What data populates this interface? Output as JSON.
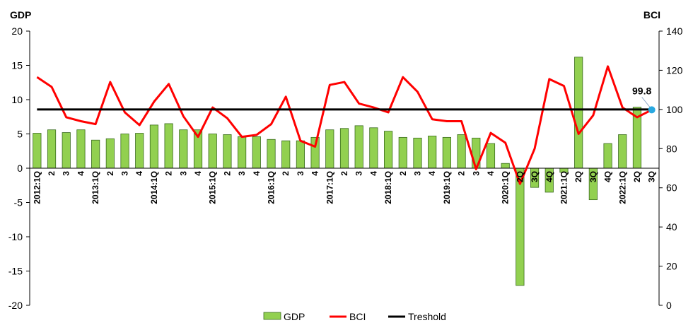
{
  "chart_data": {
    "type": "bar",
    "y_left_label": "GDP",
    "y_right_label": "BCI",
    "y_left_lim": [
      -20,
      20
    ],
    "y_left_ticks": [
      -20,
      -15,
      -10,
      -5,
      0,
      5,
      10,
      15,
      20
    ],
    "y_right_lim": [
      0,
      140
    ],
    "y_right_ticks": [
      0,
      20,
      40,
      60,
      80,
      100,
      120,
      140
    ],
    "grid": false,
    "legend_position": "bottom",
    "categories": [
      "2012:1Q",
      "2",
      "3",
      "4",
      "2013:1Q",
      "2",
      "3",
      "4",
      "2014:1Q",
      "2",
      "3",
      "4",
      "2015:1Q",
      "2",
      "3",
      "4",
      "2016:1Q",
      "2",
      "3",
      "4",
      "2017:1Q",
      "2",
      "3",
      "4",
      "2018:1Q",
      "2",
      "3",
      "4",
      "2019:1Q",
      "2",
      "3",
      "4",
      "2020:1Q",
      "2Q",
      "3Q",
      "4Q",
      "2021:1Q",
      "2Q",
      "3Q",
      "4Q",
      "2022:1Q",
      "2Q",
      "3Q"
    ],
    "series": [
      {
        "name": "GDP",
        "type": "bar",
        "axis": "left",
        "color": "#92D050",
        "border": "#3A6B1E",
        "values": [
          5.1,
          5.6,
          5.2,
          5.6,
          4.1,
          4.3,
          5.0,
          5.1,
          6.3,
          6.5,
          5.6,
          5.6,
          5.0,
          4.9,
          4.6,
          4.6,
          4.2,
          4.0,
          4.0,
          4.5,
          5.6,
          5.8,
          6.2,
          5.9,
          5.4,
          4.5,
          4.4,
          4.7,
          4.5,
          4.9,
          4.4,
          3.6,
          0.7,
          -17.1,
          -2.8,
          -3.5,
          -0.6,
          16.2,
          -4.6,
          3.6,
          4.9,
          8.9,
          null
        ]
      },
      {
        "name": "BCI",
        "type": "line",
        "axis": "right",
        "color": "#FF0000",
        "values": [
          116.5,
          111.5,
          96,
          94,
          92.5,
          114,
          98.5,
          92,
          104,
          113,
          96.5,
          86,
          101,
          95.5,
          86,
          87,
          92.5,
          106.5,
          84,
          81,
          112.5,
          114,
          103,
          101,
          98.5,
          116.5,
          109,
          95,
          94,
          94,
          69.5,
          88,
          83,
          62,
          80,
          115.5,
          112,
          87.5,
          97,
          122,
          101,
          96,
          99.8
        ]
      },
      {
        "name": "Treshold",
        "type": "line",
        "axis": "right",
        "color": "#000000",
        "values": [
          100,
          100,
          100,
          100,
          100,
          100,
          100,
          100,
          100,
          100,
          100,
          100,
          100,
          100,
          100,
          100,
          100,
          100,
          100,
          100,
          100,
          100,
          100,
          100,
          100,
          100,
          100,
          100,
          100,
          100,
          100,
          100,
          100,
          100,
          100,
          100,
          100,
          100,
          100,
          100,
          100,
          100,
          100
        ]
      }
    ],
    "annotation": {
      "text": "99.8",
      "series": "BCI",
      "index": 42,
      "marker_color": "#29A8E0"
    }
  }
}
